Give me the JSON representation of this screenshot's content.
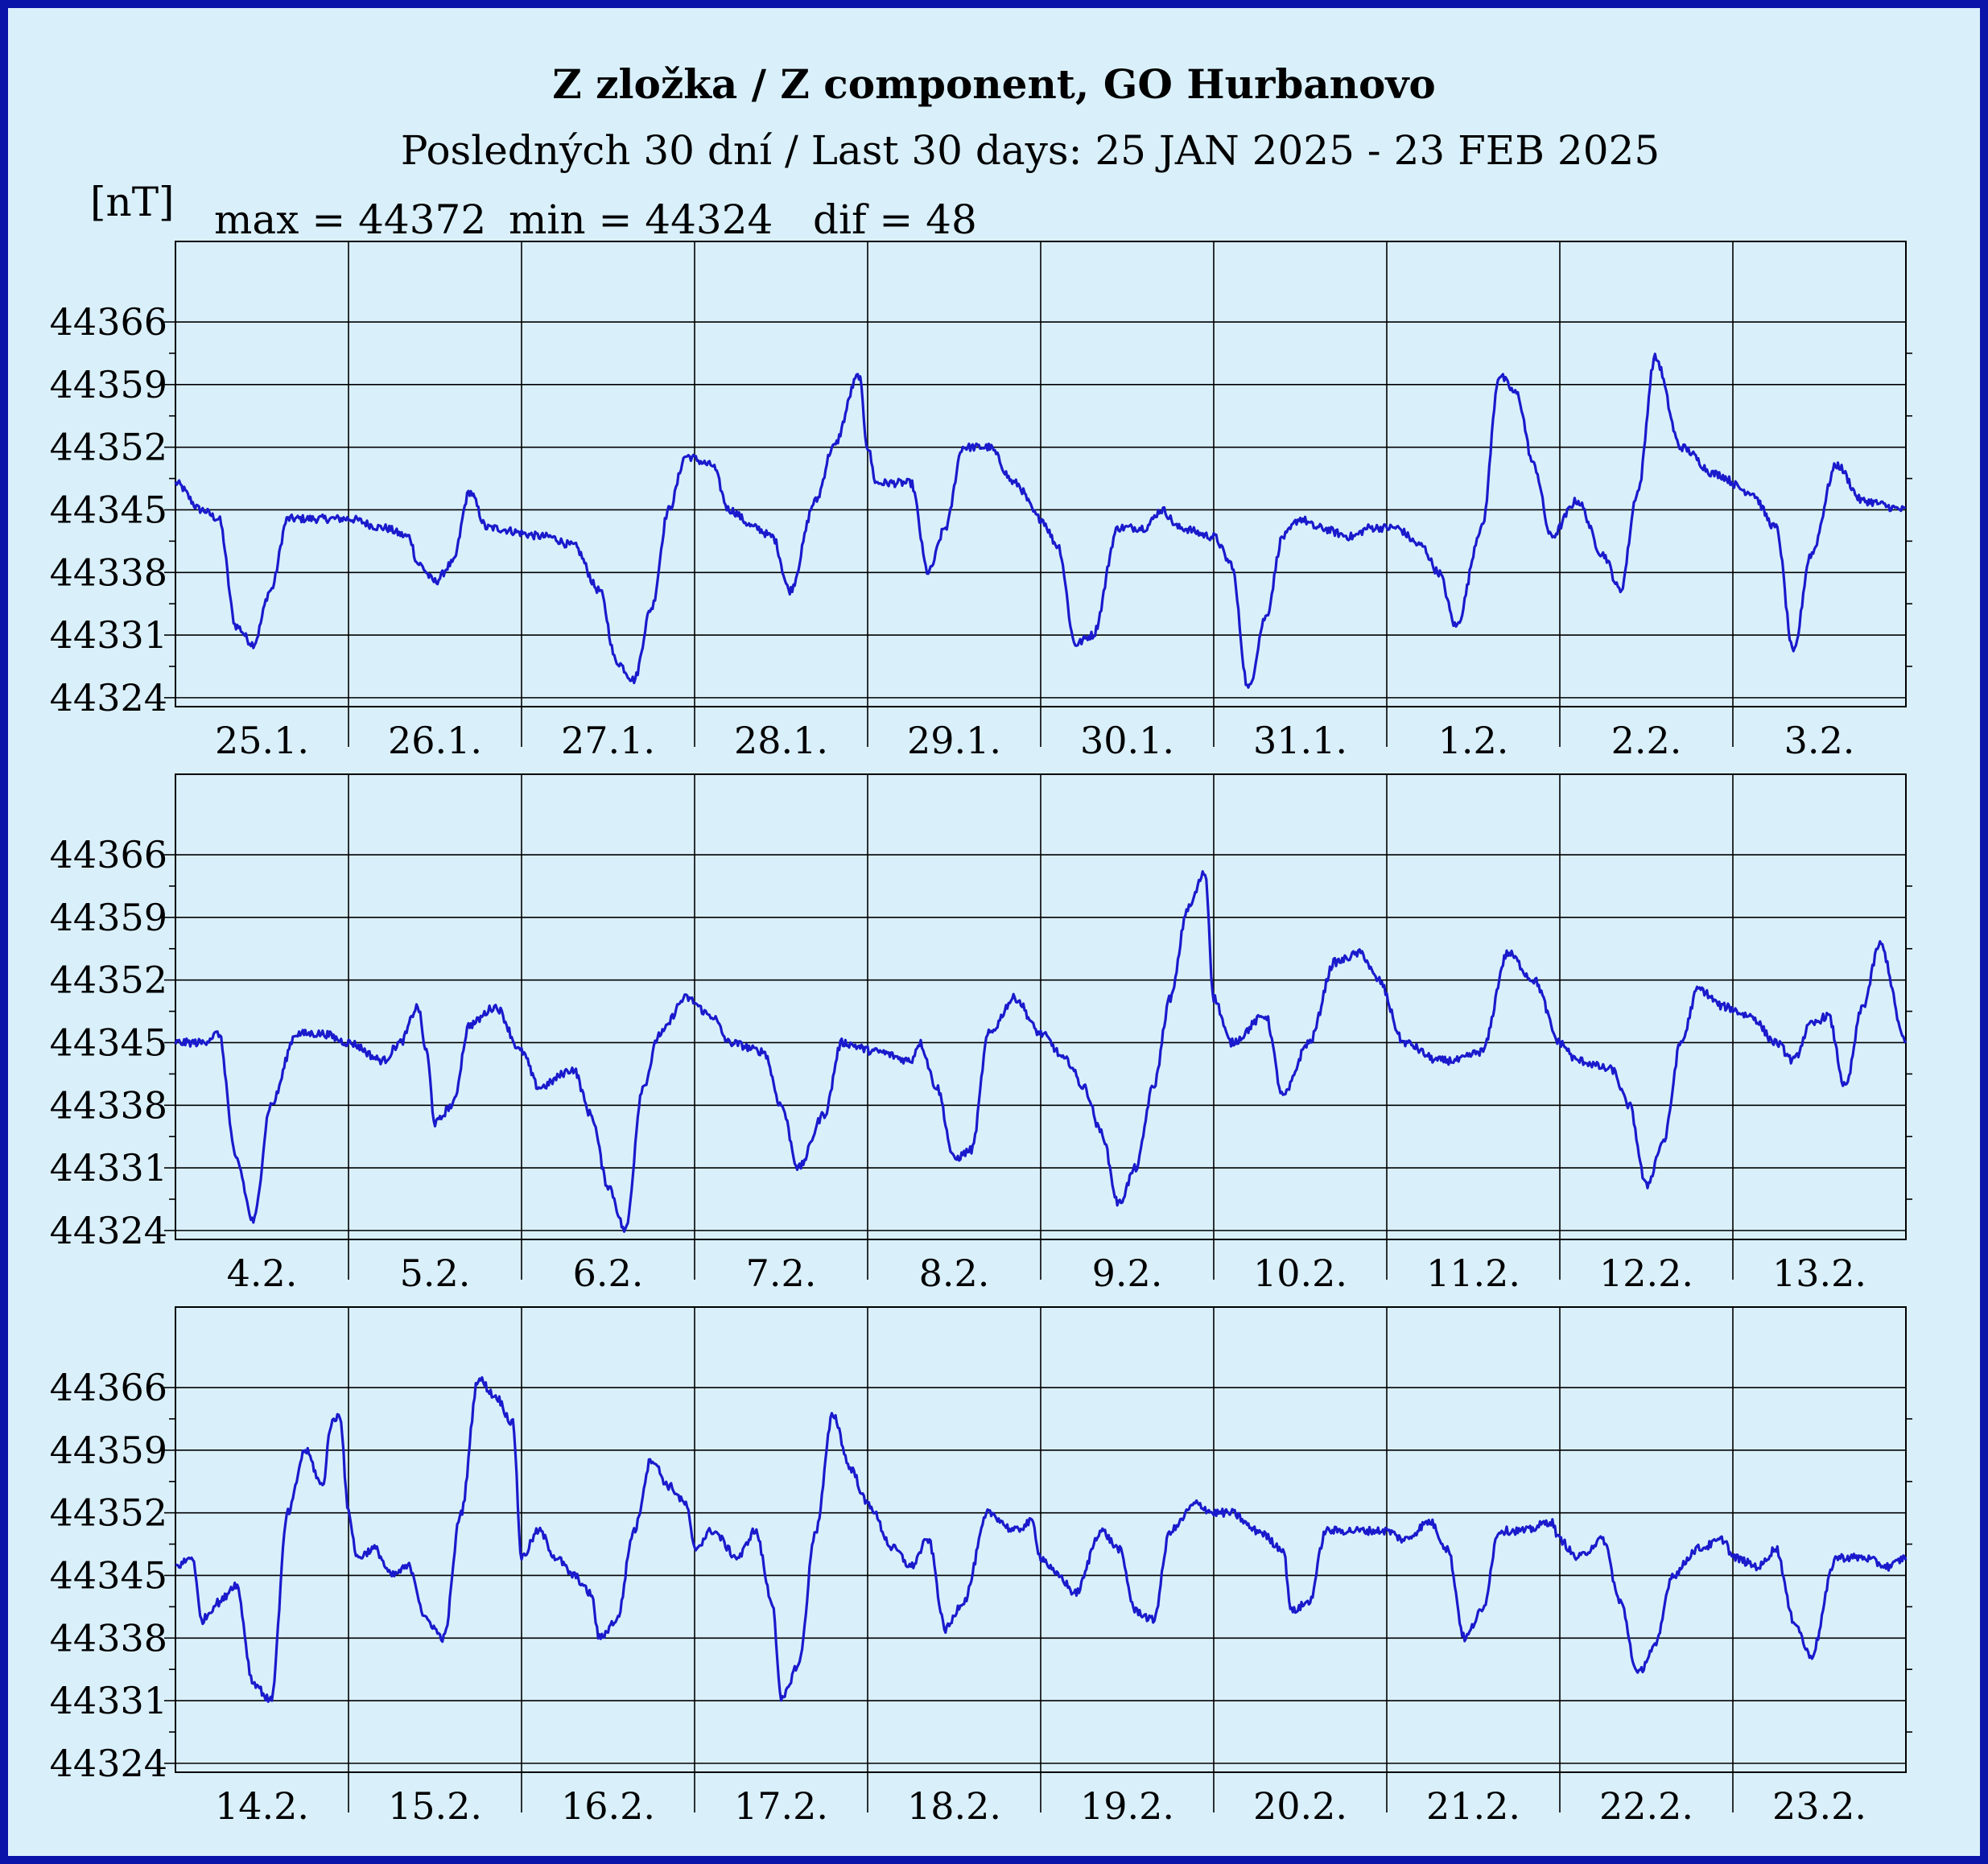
{
  "chart_data": {
    "type": "line",
    "title": "Z zložka / Z component, GO Hurbanovo",
    "subtitle": "Posledných 30 dní / Last 30 days: 25 JAN 2025 - 23 FEB 2025",
    "ylabel": "[nT]",
    "stats": {
      "max_label": "max = 44372",
      "min_label": "min = 44324",
      "dif_label": "dif = 48"
    },
    "ylim": [
      44323,
      44375
    ],
    "yticks": [
      44324,
      44331,
      44338,
      44345,
      44352,
      44359,
      44366
    ],
    "grid": true,
    "colors": {
      "line": "#1a1acc",
      "background": "#d9f0fb",
      "frame": "#0b14a8"
    },
    "panels": [
      {
        "days": [
          "25.1.",
          "26.1.",
          "27.1.",
          "28.1.",
          "29.1.",
          "30.1.",
          "31.1.",
          "1.2.",
          "2.2.",
          "3.2."
        ],
        "keypoints": [
          [
            0,
            44348
          ],
          [
            0.15,
            44345
          ],
          [
            0.25,
            44344
          ],
          [
            0.35,
            44332
          ],
          [
            0.45,
            44330
          ],
          [
            0.55,
            44336
          ],
          [
            0.65,
            44344
          ],
          [
            1.0,
            44344
          ],
          [
            1.2,
            44343
          ],
          [
            1.35,
            44342
          ],
          [
            1.4,
            44339
          ],
          [
            1.5,
            44337
          ],
          [
            1.6,
            44339
          ],
          [
            1.7,
            44347
          ],
          [
            1.8,
            44343
          ],
          [
            2.15,
            44342
          ],
          [
            2.3,
            44341
          ],
          [
            2.45,
            44336
          ],
          [
            2.55,
            44328
          ],
          [
            2.65,
            44326
          ],
          [
            2.75,
            44334
          ],
          [
            2.85,
            44345
          ],
          [
            2.95,
            44351
          ],
          [
            3.1,
            44350
          ],
          [
            3.2,
            44345
          ],
          [
            3.35,
            44343
          ],
          [
            3.45,
            44342
          ],
          [
            3.55,
            44336
          ],
          [
            3.7,
            44346
          ],
          [
            3.8,
            44352
          ],
          [
            3.95,
            44360
          ],
          [
            4.0,
            44352
          ],
          [
            4.05,
            44348
          ],
          [
            4.25,
            44348
          ],
          [
            4.35,
            44338
          ],
          [
            4.45,
            44343
          ],
          [
            4.55,
            44352
          ],
          [
            4.7,
            44352
          ],
          [
            4.85,
            44348
          ],
          [
            5.0,
            44344
          ],
          [
            5.1,
            44341
          ],
          [
            5.2,
            44330
          ],
          [
            5.3,
            44331
          ],
          [
            5.45,
            44343
          ],
          [
            5.6,
            44343
          ],
          [
            5.7,
            44345
          ],
          [
            5.8,
            44343
          ],
          [
            6.0,
            44342
          ],
          [
            6.1,
            44339
          ],
          [
            6.2,
            44325
          ],
          [
            6.3,
            44333
          ],
          [
            6.4,
            44342
          ],
          [
            6.5,
            44344
          ],
          [
            6.6,
            44343
          ],
          [
            6.8,
            44342
          ],
          [
            6.9,
            44343
          ],
          [
            7.05,
            44343
          ],
          [
            7.2,
            44341
          ],
          [
            7.3,
            44338
          ],
          [
            7.4,
            44332
          ],
          [
            7.55,
            44343
          ],
          [
            7.65,
            44360
          ],
          [
            7.75,
            44358
          ],
          [
            7.85,
            44350
          ],
          [
            7.95,
            44342
          ],
          [
            8.1,
            44346
          ],
          [
            8.25,
            44340
          ],
          [
            8.35,
            44336
          ],
          [
            8.45,
            44347
          ],
          [
            8.55,
            44362
          ],
          [
            8.7,
            44352
          ],
          [
            8.9,
            44349
          ],
          [
            9.1,
            44347
          ],
          [
            9.25,
            44343
          ],
          [
            9.35,
            44329
          ],
          [
            9.45,
            44340
          ],
          [
            9.6,
            44350
          ],
          [
            9.75,
            44346
          ],
          [
            10.0,
            44345
          ]
        ]
      },
      {
        "days": [
          "4.2.",
          "5.2.",
          "6.2.",
          "7.2.",
          "8.2.",
          "9.2.",
          "10.2.",
          "11.2.",
          "12.2.",
          "13.2."
        ],
        "keypoints": [
          [
            0,
            44345
          ],
          [
            0.15,
            44345
          ],
          [
            0.25,
            44346
          ],
          [
            0.35,
            44332
          ],
          [
            0.45,
            44325
          ],
          [
            0.55,
            44338
          ],
          [
            0.7,
            44346
          ],
          [
            0.85,
            44346
          ],
          [
            1.0,
            44345
          ],
          [
            1.2,
            44343
          ],
          [
            1.3,
            44345
          ],
          [
            1.4,
            44349
          ],
          [
            1.45,
            44344
          ],
          [
            1.5,
            44336
          ],
          [
            1.6,
            44338
          ],
          [
            1.7,
            44347
          ],
          [
            1.85,
            44349
          ],
          [
            2.0,
            44344
          ],
          [
            2.1,
            44340
          ],
          [
            2.3,
            44342
          ],
          [
            2.4,
            44337
          ],
          [
            2.5,
            44329
          ],
          [
            2.6,
            44324
          ],
          [
            2.7,
            44340
          ],
          [
            2.8,
            44346
          ],
          [
            2.95,
            44350
          ],
          [
            3.1,
            44348
          ],
          [
            3.2,
            44345
          ],
          [
            3.4,
            44344
          ],
          [
            3.5,
            44338
          ],
          [
            3.6,
            44331
          ],
          [
            3.75,
            44337
          ],
          [
            3.85,
            44345
          ],
          [
            4.05,
            44344
          ],
          [
            4.25,
            44343
          ],
          [
            4.3,
            44345
          ],
          [
            4.4,
            44340
          ],
          [
            4.5,
            44332
          ],
          [
            4.6,
            44333
          ],
          [
            4.7,
            44346
          ],
          [
            4.85,
            44350
          ],
          [
            5.0,
            44346
          ],
          [
            5.15,
            44343
          ],
          [
            5.25,
            44340
          ],
          [
            5.35,
            44335
          ],
          [
            5.45,
            44327
          ],
          [
            5.55,
            44331
          ],
          [
            5.65,
            44340
          ],
          [
            5.75,
            44350
          ],
          [
            5.85,
            44360
          ],
          [
            5.95,
            44364
          ],
          [
            6.0,
            44350
          ],
          [
            6.1,
            44345
          ],
          [
            6.3,
            44348
          ],
          [
            6.4,
            44339
          ],
          [
            6.55,
            44345
          ],
          [
            6.7,
            44354
          ],
          [
            6.85,
            44355
          ],
          [
            6.95,
            44352
          ],
          [
            7.1,
            44345
          ],
          [
            7.3,
            44343
          ],
          [
            7.4,
            44343
          ],
          [
            7.55,
            44344
          ],
          [
            7.7,
            44355
          ],
          [
            7.85,
            44352
          ],
          [
            8.0,
            44345
          ],
          [
            8.1,
            44343
          ],
          [
            8.3,
            44342
          ],
          [
            8.4,
            44338
          ],
          [
            8.5,
            44329
          ],
          [
            8.6,
            44334
          ],
          [
            8.7,
            44345
          ],
          [
            8.8,
            44351
          ],
          [
            8.95,
            44349
          ],
          [
            9.1,
            44348
          ],
          [
            9.25,
            44345
          ],
          [
            9.35,
            44343
          ],
          [
            9.45,
            44347
          ],
          [
            9.55,
            44348
          ],
          [
            9.65,
            44340
          ],
          [
            9.75,
            44349
          ],
          [
            9.85,
            44356
          ],
          [
            10.0,
            44345
          ]
        ]
      },
      {
        "days": [
          "14.2.",
          "15.2.",
          "16.2.",
          "17.2.",
          "18.2.",
          "19.2.",
          "20.2.",
          "21.2.",
          "22.2.",
          "23.2."
        ],
        "keypoints": [
          [
            0,
            44346
          ],
          [
            0.1,
            44347
          ],
          [
            0.15,
            44340
          ],
          [
            0.25,
            44342
          ],
          [
            0.35,
            44344
          ],
          [
            0.45,
            44333
          ],
          [
            0.55,
            44331
          ],
          [
            0.65,
            44352
          ],
          [
            0.75,
            44359
          ],
          [
            0.85,
            44355
          ],
          [
            0.9,
            44362
          ],
          [
            0.95,
            44363
          ],
          [
            1.0,
            44352
          ],
          [
            1.05,
            44347
          ],
          [
            1.15,
            44348
          ],
          [
            1.25,
            44345
          ],
          [
            1.35,
            44346
          ],
          [
            1.45,
            44340
          ],
          [
            1.55,
            44338
          ],
          [
            1.65,
            44352
          ],
          [
            1.75,
            44367
          ],
          [
            1.85,
            44365
          ],
          [
            1.95,
            44362
          ],
          [
            2.0,
            44347
          ],
          [
            2.1,
            44350
          ],
          [
            2.2,
            44347
          ],
          [
            2.3,
            44345
          ],
          [
            2.4,
            44343
          ],
          [
            2.45,
            44338
          ],
          [
            2.55,
            44340
          ],
          [
            2.65,
            44350
          ],
          [
            2.75,
            44358
          ],
          [
            2.85,
            44355
          ],
          [
            2.95,
            44353
          ],
          [
            3.0,
            44348
          ],
          [
            3.1,
            44350
          ],
          [
            3.25,
            44347
          ],
          [
            3.35,
            44350
          ],
          [
            3.45,
            44342
          ],
          [
            3.5,
            44331
          ],
          [
            3.6,
            44335
          ],
          [
            3.7,
            44350
          ],
          [
            3.8,
            44363
          ],
          [
            3.9,
            44357
          ],
          [
            4.0,
            44353
          ],
          [
            4.15,
            44348
          ],
          [
            4.25,
            44346
          ],
          [
            4.35,
            44349
          ],
          [
            4.45,
            44339
          ],
          [
            4.55,
            44342
          ],
          [
            4.7,
            44352
          ],
          [
            4.85,
            44350
          ],
          [
            4.95,
            44351
          ],
          [
            5.0,
            44347
          ],
          [
            5.1,
            44345
          ],
          [
            5.2,
            44343
          ],
          [
            5.35,
            44350
          ],
          [
            5.45,
            44348
          ],
          [
            5.55,
            44341
          ],
          [
            5.65,
            44340
          ],
          [
            5.75,
            44350
          ],
          [
            5.9,
            44353
          ],
          [
            6.0,
            44352
          ],
          [
            6.1,
            44352
          ],
          [
            6.25,
            44350
          ],
          [
            6.4,
            44348
          ],
          [
            6.45,
            44341
          ],
          [
            6.55,
            44342
          ],
          [
            6.65,
            44350
          ],
          [
            6.8,
            44350
          ],
          [
            7.0,
            44350
          ],
          [
            7.1,
            44349
          ],
          [
            7.25,
            44351
          ],
          [
            7.35,
            44348
          ],
          [
            7.45,
            44338
          ],
          [
            7.55,
            44341
          ],
          [
            7.65,
            44350
          ],
          [
            7.8,
            44350
          ],
          [
            7.95,
            44351
          ],
          [
            8.0,
            44349
          ],
          [
            8.1,
            44347
          ],
          [
            8.25,
            44349
          ],
          [
            8.35,
            44342
          ],
          [
            8.45,
            44334
          ],
          [
            8.55,
            44337
          ],
          [
            8.65,
            44345
          ],
          [
            8.8,
            44348
          ],
          [
            8.95,
            44349
          ],
          [
            9.0,
            44347
          ],
          [
            9.15,
            44346
          ],
          [
            9.25,
            44348
          ],
          [
            9.35,
            44340
          ],
          [
            9.45,
            44336
          ],
          [
            9.6,
            44347
          ],
          [
            9.75,
            44347
          ],
          [
            9.9,
            44346
          ],
          [
            10.0,
            44347
          ]
        ]
      }
    ]
  }
}
